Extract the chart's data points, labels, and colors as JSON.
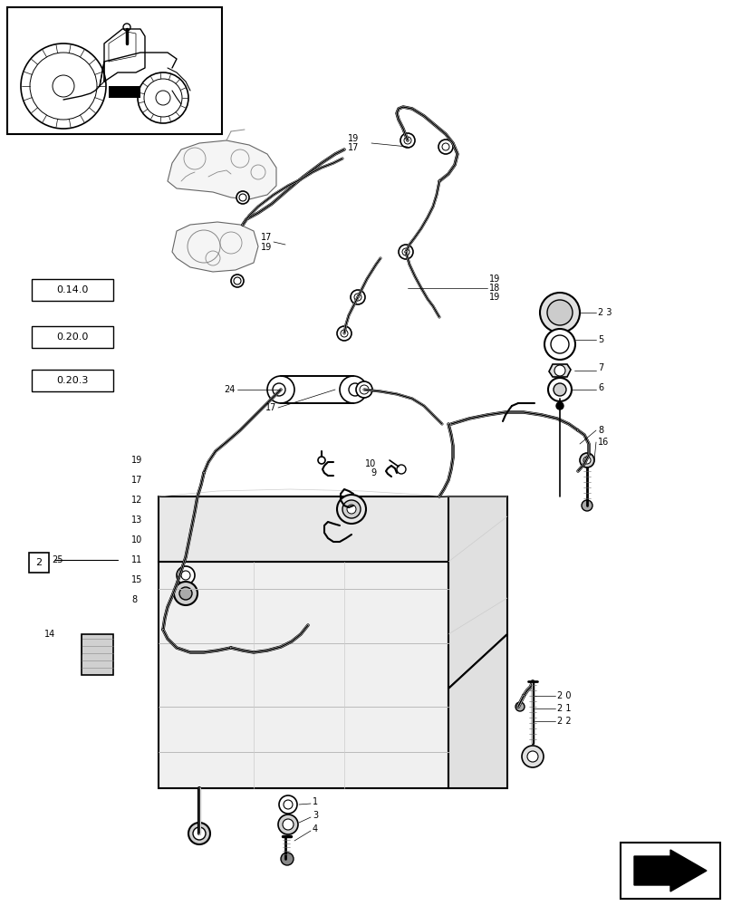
{
  "bg_color": "#ffffff",
  "line_color": "#000000",
  "gray_line": "#aaaaaa",
  "light_gray": "#cccccc",
  "fig_w": 8.08,
  "fig_h": 10.0,
  "dpi": 100
}
